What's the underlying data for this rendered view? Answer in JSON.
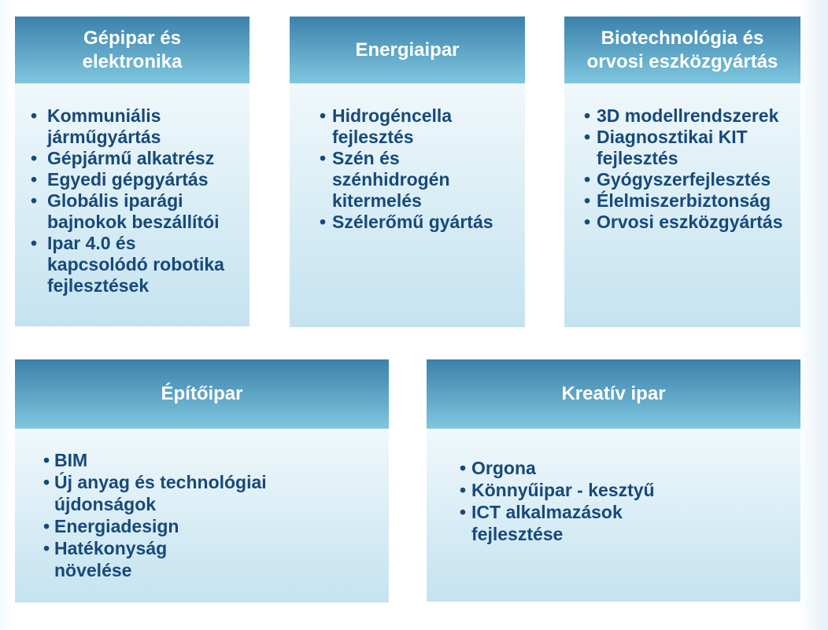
{
  "colors": {
    "header_gradient_top": "#3b81ab",
    "header_gradient_bottom": "#7fc7df",
    "body_gradient_top": "#f0f8fb",
    "body_gradient_bottom": "#c4e3f0",
    "title_text": "#ffffff",
    "item_text": "#17497b"
  },
  "bullet_glyph": "•",
  "cards": [
    {
      "title": "Gépipar és\nelektronika",
      "items": [
        "Kommuniális\njárműgyártás",
        "Gépjármű alkatrész",
        "Egyedi gépgyártás",
        "Globális iparági\nbajnokok beszállítói",
        "Ipar 4.0 és\nkapcsolódó robotika\nfejlesztések"
      ]
    },
    {
      "title": "Energiaipar",
      "items": [
        "Hidrogéncella\nfejlesztés",
        "Szén és\nszénhidrogén\nkitermelés",
        "Szélerőmű gyártás"
      ]
    },
    {
      "title": "Biotechnológia és\norvosi eszközgyártás",
      "items": [
        "3D modellrendszerek",
        "Diagnosztikai KIT\nfejlesztés",
        "Gyógyszerfejlesztés",
        "Élelmiszerbiztonság",
        "Orvosi eszközgyártás"
      ]
    },
    {
      "title": "Építőipar",
      "items": [
        "BIM",
        "Új anyag és technológiai\nújdonságok",
        "Energiadesign",
        "Hatékonyság\nnövelése"
      ]
    },
    {
      "title": "Kreatív ipar",
      "items": [
        "Orgona",
        "Könnyűipar - kesztyű",
        "ICT alkalmazások\nfejlesztése"
      ]
    }
  ]
}
